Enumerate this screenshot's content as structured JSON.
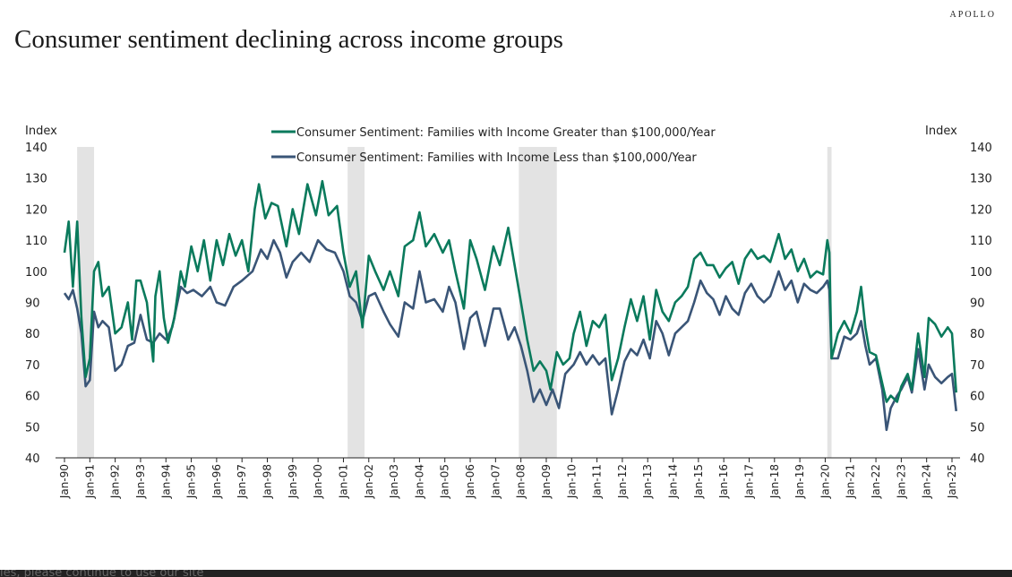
{
  "header": {
    "title": "Consumer sentiment declining across income groups",
    "brand": "APOLLO"
  },
  "banner": {
    "text": "ies, please continue to use our site"
  },
  "chart_data": {
    "type": "line",
    "title": "Consumer sentiment declining across income groups",
    "ylabel_left": "Index",
    "ylabel_right": "Index",
    "ylim": [
      40,
      140
    ],
    "yticks": [
      40,
      50,
      60,
      70,
      80,
      90,
      100,
      110,
      120,
      130,
      140
    ],
    "xticks": [
      "Jan-90",
      "Jan-91",
      "Jan-92",
      "Jan-93",
      "Jan-94",
      "Jan-95",
      "Jan-96",
      "Jan-97",
      "Jan-98",
      "Jan-99",
      "Jan-00",
      "Jan-01",
      "Jan-02",
      "Jan-03",
      "Jan-04",
      "Jan-05",
      "Jan-06",
      "Jan-07",
      "Jan-08",
      "Jan-09",
      "Jan-10",
      "Jan-11",
      "Jan-12",
      "Jan-13",
      "Jan-14",
      "Jan-15",
      "Jan-16",
      "Jan-17",
      "Jan-18",
      "Jan-19",
      "Jan-20",
      "Jan-21",
      "Jan-22",
      "Jan-23",
      "Jan-24",
      "Jan-25"
    ],
    "xlim": [
      "1990-01",
      "2025-01"
    ],
    "grid": false,
    "legend": "top-center",
    "recessions": [
      [
        "1990-07",
        "1991-03"
      ],
      [
        "2001-03",
        "2001-11"
      ],
      [
        "2007-12",
        "2009-06"
      ],
      [
        "2020-02",
        "2020-04"
      ]
    ],
    "colors": {
      "high": "#0a7a5c",
      "low": "#3a5577",
      "recession": "#e3e3e3"
    },
    "series": [
      {
        "name": "Consumer Sentiment: Families with Income Greater than $100,000/Year",
        "x": [
          "1990-01",
          "1990-03",
          "1990-05",
          "1990-07",
          "1990-09",
          "1990-11",
          "1991-01",
          "1991-03",
          "1991-05",
          "1991-07",
          "1991-10",
          "1992-01",
          "1992-04",
          "1992-07",
          "1992-09",
          "1992-11",
          "1993-01",
          "1993-04",
          "1993-07",
          "1993-08",
          "1993-10",
          "1993-12",
          "1994-02",
          "1994-05",
          "1994-08",
          "1994-10",
          "1995-01",
          "1995-04",
          "1995-07",
          "1995-10",
          "1996-01",
          "1996-04",
          "1996-07",
          "1996-10",
          "1997-01",
          "1997-04",
          "1997-07",
          "1997-09",
          "1997-12",
          "1998-03",
          "1998-06",
          "1998-10",
          "1999-01",
          "1999-04",
          "1999-08",
          "1999-12",
          "2000-03",
          "2000-06",
          "2000-10",
          "2001-01",
          "2001-04",
          "2001-07",
          "2001-10",
          "2002-01",
          "2002-04",
          "2002-08",
          "2002-11",
          "2003-03",
          "2003-06",
          "2003-10",
          "2004-01",
          "2004-04",
          "2004-08",
          "2004-12",
          "2005-03",
          "2005-06",
          "2005-10",
          "2006-01",
          "2006-04",
          "2006-08",
          "2006-12",
          "2007-03",
          "2007-07",
          "2007-10",
          "2008-01",
          "2008-04",
          "2008-07",
          "2008-10",
          "2009-01",
          "2009-03",
          "2009-06",
          "2009-09",
          "2009-12",
          "2010-02",
          "2010-05",
          "2010-08",
          "2010-11",
          "2011-02",
          "2011-05",
          "2011-08",
          "2011-11",
          "2012-02",
          "2012-05",
          "2012-08",
          "2012-11",
          "2013-02",
          "2013-05",
          "2013-08",
          "2013-11",
          "2014-02",
          "2014-05",
          "2014-08",
          "2014-11",
          "2015-02",
          "2015-05",
          "2015-08",
          "2015-11",
          "2016-02",
          "2016-05",
          "2016-08",
          "2016-11",
          "2017-02",
          "2017-05",
          "2017-08",
          "2017-11",
          "2018-03",
          "2018-06",
          "2018-09",
          "2018-12",
          "2019-03",
          "2019-06",
          "2019-09",
          "2019-12",
          "2020-02",
          "2020-03",
          "2020-04",
          "2020-07",
          "2020-10",
          "2021-01",
          "2021-04",
          "2021-06",
          "2021-08",
          "2021-10",
          "2022-01",
          "2022-04",
          "2022-06",
          "2022-08",
          "2022-11",
          "2023-01",
          "2023-04",
          "2023-06",
          "2023-09",
          "2023-12",
          "2024-02",
          "2024-05",
          "2024-08",
          "2024-11",
          "2025-01",
          "2025-03"
        ],
        "values": [
          106,
          116,
          95,
          116,
          85,
          66,
          72,
          100,
          103,
          92,
          95,
          80,
          82,
          90,
          78,
          97,
          97,
          90,
          71,
          92,
          100,
          85,
          77,
          85,
          100,
          95,
          108,
          100,
          110,
          97,
          110,
          102,
          112,
          105,
          110,
          100,
          120,
          128,
          117,
          122,
          121,
          108,
          120,
          112,
          128,
          118,
          129,
          118,
          121,
          106,
          95,
          100,
          82,
          105,
          100,
          94,
          100,
          92,
          108,
          110,
          119,
          108,
          112,
          106,
          110,
          100,
          88,
          110,
          104,
          94,
          108,
          102,
          114,
          102,
          90,
          78,
          68,
          71,
          68,
          62,
          74,
          70,
          72,
          80,
          87,
          76,
          84,
          82,
          86,
          65,
          72,
          82,
          91,
          84,
          92,
          78,
          94,
          87,
          84,
          90,
          92,
          95,
          104,
          106,
          102,
          102,
          98,
          101,
          103,
          96,
          104,
          107,
          104,
          105,
          103,
          112,
          104,
          107,
          100,
          104,
          98,
          100,
          99,
          110,
          106,
          72,
          80,
          84,
          80,
          87,
          95,
          82,
          74,
          73,
          64,
          58,
          60,
          58,
          63,
          67,
          62,
          80,
          66,
          85,
          83,
          79,
          82,
          80,
          61
        ]
      },
      {
        "name": "Consumer Sentiment: Families with Income Less than $100,000/Year",
        "x": [
          "1990-01",
          "1990-03",
          "1990-05",
          "1990-07",
          "1990-09",
          "1990-11",
          "1991-01",
          "1991-03",
          "1991-05",
          "1991-07",
          "1991-10",
          "1992-01",
          "1992-04",
          "1992-07",
          "1992-10",
          "1993-01",
          "1993-04",
          "1993-07",
          "1993-10",
          "1994-01",
          "1994-04",
          "1994-08",
          "1994-11",
          "1995-02",
          "1995-06",
          "1995-10",
          "1996-01",
          "1996-05",
          "1996-09",
          "1997-01",
          "1997-06",
          "1997-10",
          "1998-01",
          "1998-04",
          "1998-07",
          "1998-10",
          "1999-01",
          "1999-05",
          "1999-09",
          "2000-01",
          "2000-05",
          "2000-09",
          "2001-01",
          "2001-04",
          "2001-07",
          "2001-10",
          "2002-01",
          "2002-04",
          "2002-08",
          "2002-11",
          "2003-03",
          "2003-06",
          "2003-10",
          "2004-01",
          "2004-04",
          "2004-08",
          "2004-12",
          "2005-03",
          "2005-06",
          "2005-10",
          "2006-01",
          "2006-04",
          "2006-08",
          "2006-12",
          "2007-03",
          "2007-07",
          "2007-10",
          "2008-01",
          "2008-04",
          "2008-07",
          "2008-10",
          "2009-01",
          "2009-04",
          "2009-07",
          "2009-10",
          "2010-02",
          "2010-05",
          "2010-08",
          "2010-11",
          "2011-02",
          "2011-05",
          "2011-08",
          "2011-11",
          "2012-02",
          "2012-05",
          "2012-08",
          "2012-11",
          "2013-02",
          "2013-05",
          "2013-08",
          "2013-11",
          "2014-02",
          "2014-05",
          "2014-08",
          "2014-11",
          "2015-02",
          "2015-05",
          "2015-08",
          "2015-11",
          "2016-02",
          "2016-05",
          "2016-08",
          "2016-11",
          "2017-02",
          "2017-05",
          "2017-08",
          "2017-11",
          "2018-03",
          "2018-06",
          "2018-09",
          "2018-12",
          "2019-03",
          "2019-06",
          "2019-09",
          "2019-12",
          "2020-02",
          "2020-03",
          "2020-04",
          "2020-07",
          "2020-10",
          "2021-01",
          "2021-04",
          "2021-06",
          "2021-08",
          "2021-10",
          "2022-01",
          "2022-04",
          "2022-06",
          "2022-08",
          "2022-11",
          "2023-01",
          "2023-04",
          "2023-06",
          "2023-09",
          "2023-12",
          "2024-02",
          "2024-05",
          "2024-08",
          "2024-11",
          "2025-01",
          "2025-03"
        ],
        "values": [
          93,
          91,
          94,
          88,
          80,
          63,
          65,
          87,
          82,
          84,
          82,
          68,
          70,
          76,
          77,
          86,
          78,
          77,
          80,
          78,
          82,
          95,
          93,
          94,
          92,
          95,
          90,
          89,
          95,
          97,
          100,
          107,
          104,
          110,
          106,
          98,
          103,
          106,
          103,
          110,
          107,
          106,
          100,
          92,
          90,
          84,
          92,
          93,
          87,
          83,
          79,
          90,
          88,
          100,
          90,
          91,
          87,
          95,
          90,
          75,
          85,
          87,
          76,
          88,
          88,
          78,
          82,
          76,
          68,
          58,
          62,
          57,
          62,
          56,
          67,
          70,
          74,
          70,
          73,
          70,
          72,
          54,
          62,
          71,
          75,
          73,
          78,
          72,
          84,
          80,
          73,
          80,
          82,
          84,
          90,
          97,
          93,
          91,
          86,
          92,
          88,
          86,
          93,
          96,
          92,
          90,
          92,
          100,
          94,
          97,
          90,
          96,
          94,
          93,
          95,
          97,
          94,
          72,
          72,
          79,
          78,
          80,
          84,
          76,
          70,
          72,
          62,
          49,
          56,
          60,
          62,
          66,
          61,
          75,
          62,
          70,
          66,
          64,
          66,
          67,
          55
        ]
      }
    ]
  }
}
